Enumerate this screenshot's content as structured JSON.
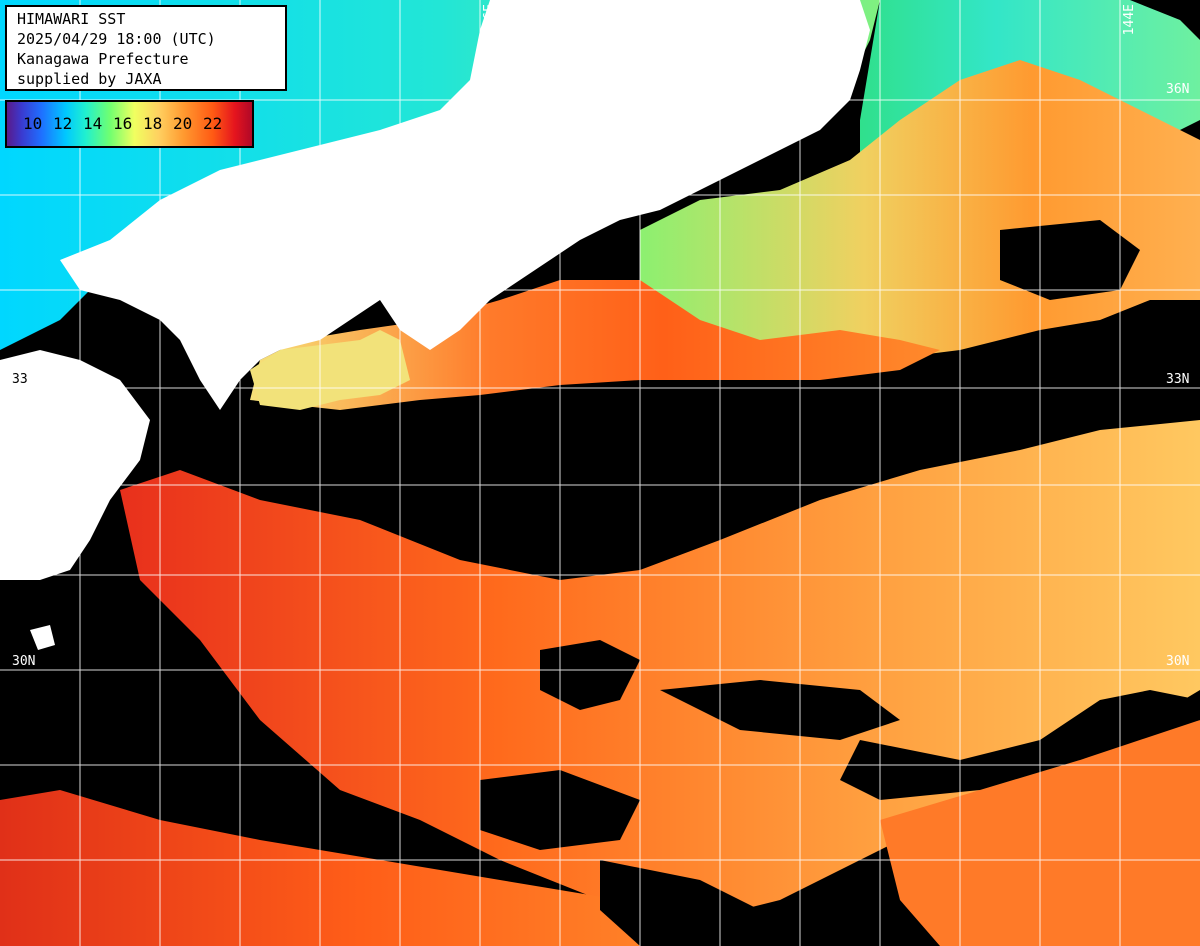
{
  "header": {
    "title": "HIMAWARI SST",
    "datetime": "2025/04/29 18:00 (UTC)",
    "region": "Kanagawa Prefecture",
    "credit": "supplied by JAXA"
  },
  "legend": {
    "labels": [
      "10",
      "12",
      "14",
      "16",
      "18",
      "20",
      "22"
    ],
    "colors": [
      "#5a1a8a",
      "#1f6fff",
      "#00c8ff",
      "#70ff70",
      "#f0ff60",
      "#ff9a30",
      "#e5141e"
    ]
  },
  "grid": {
    "lon_labels": [
      "136E",
      "144E"
    ],
    "lat_labels": [
      "36N",
      "33N",
      "30N"
    ],
    "left_lat_labels": [
      "33",
      "30N"
    ]
  },
  "colors": {
    "land": "#ffffff",
    "cloud": "#000000",
    "grid": "#ffffff",
    "cold_sea": "#33e6c8",
    "mid_sea": "#f3e070",
    "warm_sea": "#ff8a2c",
    "hot_sea": "#e8301c"
  }
}
